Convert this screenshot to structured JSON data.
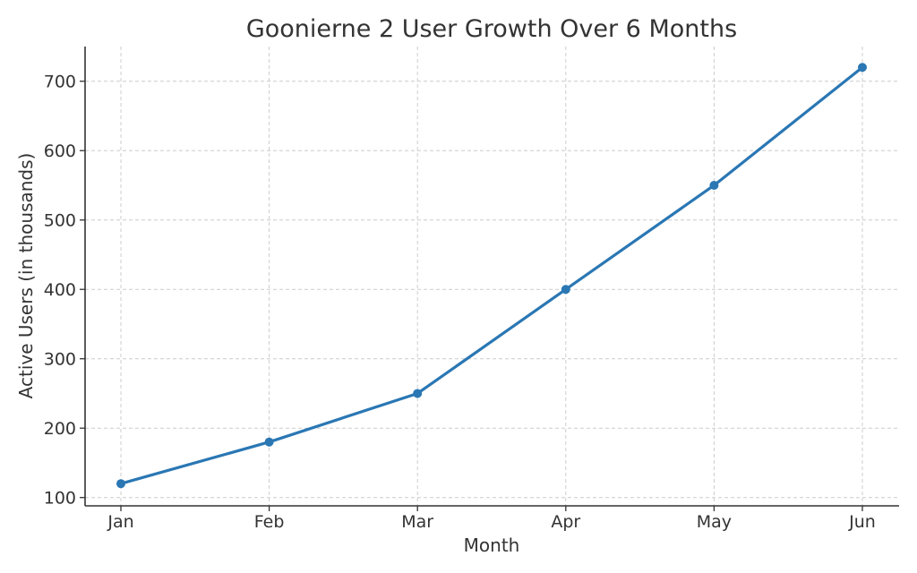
{
  "chart_data": {
    "type": "line",
    "title": "Goonierne 2 User Growth Over 6 Months",
    "xlabel": "Month",
    "ylabel": "Active Users (in thousands)",
    "categories": [
      "Jan",
      "Feb",
      "Mar",
      "Apr",
      "May",
      "Jun"
    ],
    "series": [
      {
        "values": [
          120,
          180,
          250,
          400,
          550,
          720
        ],
        "color": "#2a77b4",
        "marker": "circle"
      }
    ],
    "yticks": [
      100,
      200,
      300,
      400,
      500,
      600,
      700
    ],
    "ytick_labels": [
      "100",
      "200",
      "300",
      "400",
      "500",
      "600",
      "700"
    ],
    "ylim": [
      88,
      750
    ],
    "grid": true,
    "grid_style": "dashed",
    "legend": false
  }
}
